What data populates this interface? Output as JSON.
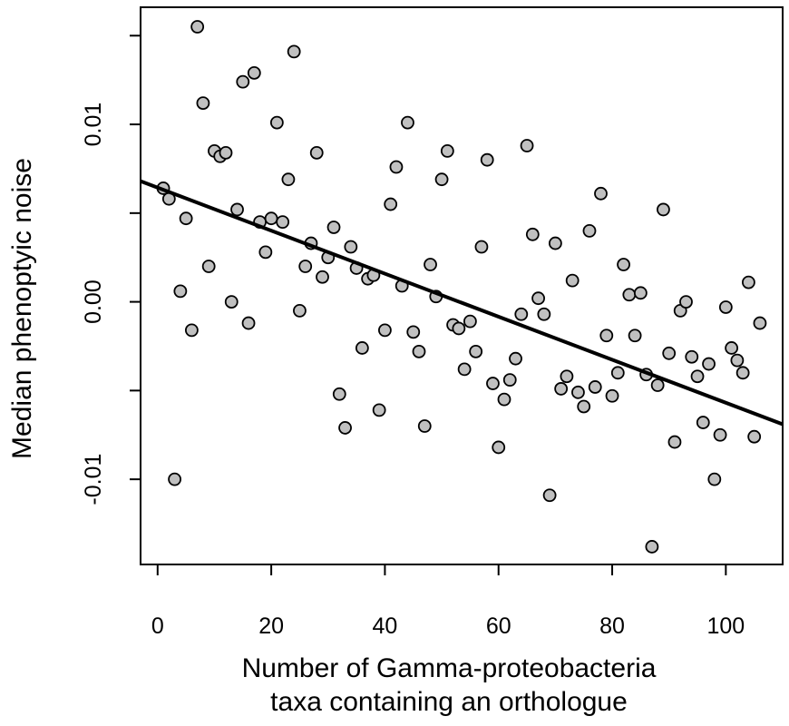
{
  "chart_data": {
    "type": "scatter",
    "xlabel": [
      "Number of Gamma-proteobacteria",
      "taxa containing an orthologue"
    ],
    "ylabel": "Median phenoptyic noise",
    "xlim": [
      -3,
      110
    ],
    "ylim": [
      -0.0148,
      0.0166
    ],
    "x_ticks": [
      0,
      20,
      40,
      60,
      80,
      100
    ],
    "y_ticks": [
      -0.01,
      -0.005,
      0.0,
      0.005,
      0.01,
      0.015
    ],
    "y_tick_labels": [
      "-0.01",
      "",
      "0.00",
      "",
      "0.01",
      ""
    ],
    "x_tick_labels": [
      "0",
      "20",
      "40",
      "60",
      "80",
      "100"
    ],
    "grid": false,
    "legend": "none",
    "point_fill": "#c0c0c0",
    "point_stroke": "#000000",
    "line_color": "#000000",
    "regression_line": {
      "x": [
        -3,
        110
      ],
      "y": [
        0.0068,
        -0.0069
      ]
    },
    "series": [
      {
        "points": [
          [
            1,
            0.0064
          ],
          [
            2,
            0.0058
          ],
          [
            3,
            -0.01
          ],
          [
            4,
            0.0006
          ],
          [
            5,
            0.0047
          ],
          [
            6,
            -0.0016
          ],
          [
            7,
            0.0155
          ],
          [
            8,
            0.0112
          ],
          [
            9,
            0.002
          ],
          [
            10,
            0.0085
          ],
          [
            11,
            0.0082
          ],
          [
            12,
            0.0084
          ],
          [
            13,
            0.0
          ],
          [
            14,
            0.0052
          ],
          [
            15,
            0.0124
          ],
          [
            16,
            -0.0012
          ],
          [
            17,
            0.0129
          ],
          [
            18,
            0.0045
          ],
          [
            19,
            0.0028
          ],
          [
            20,
            0.0047
          ],
          [
            21,
            0.0101
          ],
          [
            22,
            0.0045
          ],
          [
            23,
            0.0069
          ],
          [
            24,
            0.0141
          ],
          [
            25,
            -0.0005
          ],
          [
            26,
            0.002
          ],
          [
            27,
            0.0033
          ],
          [
            28,
            0.0084
          ],
          [
            29,
            0.0014
          ],
          [
            30,
            0.0025
          ],
          [
            31,
            0.0042
          ],
          [
            32,
            -0.0052
          ],
          [
            33,
            -0.0071
          ],
          [
            34,
            0.0031
          ],
          [
            35,
            0.0019
          ],
          [
            36,
            -0.0026
          ],
          [
            37,
            0.0013
          ],
          [
            38,
            0.0015
          ],
          [
            39,
            -0.0061
          ],
          [
            40,
            -0.0016
          ],
          [
            41,
            0.0055
          ],
          [
            42,
            0.0076
          ],
          [
            43,
            0.0009
          ],
          [
            44,
            0.0101
          ],
          [
            45,
            -0.0017
          ],
          [
            46,
            -0.0028
          ],
          [
            47,
            -0.007
          ],
          [
            48,
            0.0021
          ],
          [
            49,
            0.0003
          ],
          [
            50,
            0.0069
          ],
          [
            51,
            0.0085
          ],
          [
            52,
            -0.0013
          ],
          [
            53,
            -0.0015
          ],
          [
            54,
            -0.0038
          ],
          [
            55,
            -0.0011
          ],
          [
            56,
            -0.0028
          ],
          [
            57,
            0.0031
          ],
          [
            58,
            0.008
          ],
          [
            59,
            -0.0046
          ],
          [
            60,
            -0.0082
          ],
          [
            61,
            -0.0055
          ],
          [
            62,
            -0.0044
          ],
          [
            63,
            -0.0032
          ],
          [
            64,
            -0.0007
          ],
          [
            65,
            0.0088
          ],
          [
            66,
            0.0038
          ],
          [
            67,
            0.0002
          ],
          [
            68,
            -0.0007
          ],
          [
            69,
            -0.0109
          ],
          [
            70,
            0.0033
          ],
          [
            71,
            -0.0049
          ],
          [
            72,
            -0.0042
          ],
          [
            73,
            0.0012
          ],
          [
            74,
            -0.0051
          ],
          [
            75,
            -0.0059
          ],
          [
            76,
            0.004
          ],
          [
            77,
            -0.0048
          ],
          [
            78,
            0.0061
          ],
          [
            79,
            -0.0019
          ],
          [
            80,
            -0.0053
          ],
          [
            81,
            -0.004
          ],
          [
            82,
            0.0021
          ],
          [
            83,
            0.0004
          ],
          [
            84,
            -0.0019
          ],
          [
            85,
            0.0005
          ],
          [
            86,
            -0.0041
          ],
          [
            87,
            -0.0138
          ],
          [
            88,
            -0.0047
          ],
          [
            89,
            0.0052
          ],
          [
            90,
            -0.0029
          ],
          [
            91,
            -0.0079
          ],
          [
            92,
            -0.0005
          ],
          [
            93,
            0.0
          ],
          [
            94,
            -0.0031
          ],
          [
            95,
            -0.0042
          ],
          [
            96,
            -0.0068
          ],
          [
            97,
            -0.0035
          ],
          [
            98,
            -0.01
          ],
          [
            99,
            -0.0075
          ],
          [
            100,
            -0.0003
          ],
          [
            101,
            -0.0026
          ],
          [
            102,
            -0.0033
          ],
          [
            103,
            -0.004
          ],
          [
            104,
            0.0011
          ],
          [
            105,
            -0.0076
          ],
          [
            106,
            -0.0012
          ]
        ]
      }
    ]
  }
}
